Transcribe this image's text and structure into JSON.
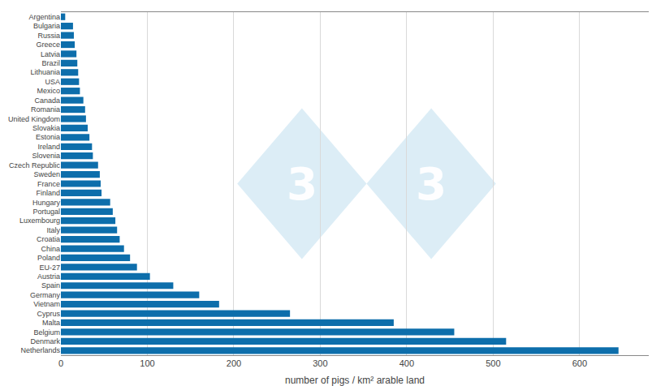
{
  "chart_data": {
    "type": "bar",
    "orientation": "horizontal",
    "categories": [
      "Argentina",
      "Bulgaria",
      "Russia",
      "Greece",
      "Latvia",
      "Brazil",
      "Lithuania",
      "USA",
      "Mexico",
      "Canada",
      "Romania",
      "United Kingdom",
      "Slovakia",
      "Estonia",
      "Ireland",
      "Slovenia",
      "Czech Republic",
      "Sweden",
      "France",
      "Finland",
      "Hungary",
      "Portugal",
      "Luxembourg",
      "Italy",
      "Croatia",
      "China",
      "Poland",
      "EU-27",
      "Austria",
      "Spain",
      "Germany",
      "Vietnam",
      "Cyprus",
      "Malta",
      "Belgium",
      "Denmark",
      "Netherlands"
    ],
    "values": [
      5,
      14,
      15,
      16,
      18,
      19,
      20,
      21,
      22,
      26,
      28,
      29,
      31,
      33,
      36,
      37,
      43,
      45,
      46,
      47,
      57,
      60,
      63,
      65,
      68,
      73,
      80,
      88,
      103,
      130,
      160,
      183,
      265,
      385,
      455,
      515,
      645
    ],
    "color": "#0d6eab",
    "xlabel": "number of pigs / km² arable land",
    "xlim": [
      0,
      680
    ],
    "xticks": [
      0,
      100,
      200,
      300,
      400,
      500,
      600
    ],
    "grid": true,
    "annotations": [
      "3",
      "3"
    ]
  }
}
